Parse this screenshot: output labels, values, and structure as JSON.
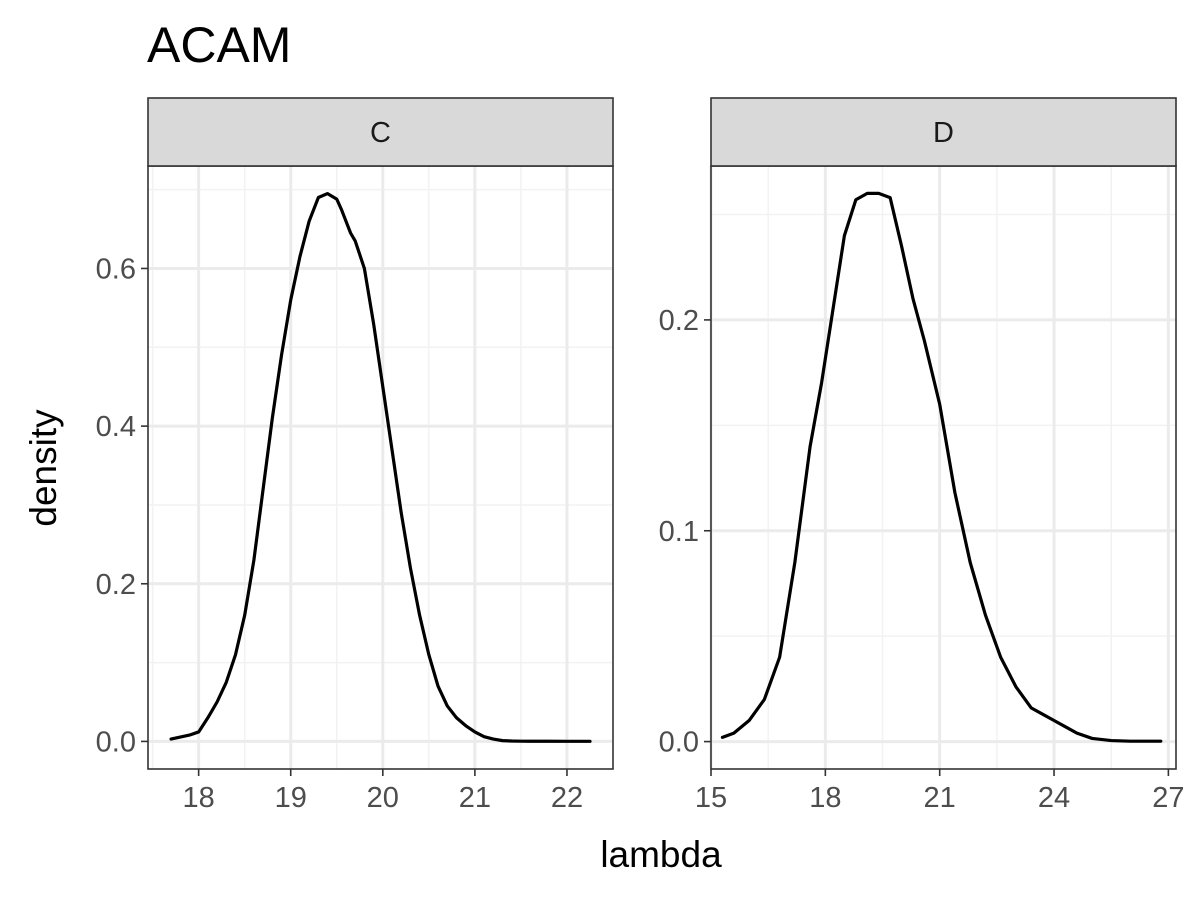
{
  "chart_data": {
    "type": "line",
    "title": "ACAM",
    "xlabel": "lambda",
    "ylabel": "density",
    "grid": true,
    "facets": [
      {
        "strip": "C",
        "xlim": [
          17.45,
          22.5
        ],
        "ylim": [
          -0.035,
          0.73
        ],
        "x_ticks": [
          18,
          19,
          20,
          21,
          22
        ],
        "x_tick_labels": [
          "18",
          "19",
          "20",
          "21",
          "22"
        ],
        "y_ticks": [
          0.0,
          0.2,
          0.4,
          0.6
        ],
        "y_tick_labels": [
          "0.0",
          "0.2",
          "0.4",
          "0.6"
        ],
        "series": [
          {
            "x": [
              17.7,
              17.9,
              18.0,
              18.1,
              18.2,
              18.3,
              18.4,
              18.5,
              18.6,
              18.7,
              18.8,
              18.9,
              19.0,
              19.1,
              19.2,
              19.3,
              19.4,
              19.5,
              19.55,
              19.6,
              19.65,
              19.7,
              19.8,
              19.9,
              20.0,
              20.1,
              20.2,
              20.3,
              20.4,
              20.5,
              20.6,
              20.7,
              20.8,
              20.9,
              21.0,
              21.1,
              21.2,
              21.3,
              21.4,
              21.5,
              21.6,
              21.8,
              22.0,
              22.25
            ],
            "y": [
              0.003,
              0.008,
              0.012,
              0.03,
              0.05,
              0.075,
              0.11,
              0.16,
              0.23,
              0.32,
              0.41,
              0.49,
              0.56,
              0.615,
              0.66,
              0.69,
              0.695,
              0.688,
              0.675,
              0.66,
              0.645,
              0.635,
              0.6,
              0.53,
              0.45,
              0.37,
              0.29,
              0.22,
              0.16,
              0.11,
              0.07,
              0.045,
              0.03,
              0.02,
              0.012,
              0.006,
              0.003,
              0.001,
              0.0005,
              0.0003,
              0.0002,
              0.0002,
              0.0001,
              0.0001
            ]
          }
        ]
      },
      {
        "strip": "D",
        "xlim": [
          15.0,
          27.2
        ],
        "ylim": [
          -0.013,
          0.273
        ],
        "x_ticks": [
          15,
          18,
          21,
          24,
          27
        ],
        "x_tick_labels": [
          "15",
          "18",
          "21",
          "24",
          "27"
        ],
        "y_ticks": [
          0.0,
          0.1,
          0.2
        ],
        "y_tick_labels": [
          "0.0",
          "0.1",
          "0.2"
        ],
        "series": [
          {
            "x": [
              15.3,
              15.6,
              16.0,
              16.4,
              16.8,
              17.2,
              17.6,
              17.9,
              18.2,
              18.5,
              18.8,
              19.1,
              19.4,
              19.7,
              20.0,
              20.3,
              20.6,
              21.0,
              21.4,
              21.8,
              22.2,
              22.6,
              23.0,
              23.4,
              23.7,
              24.0,
              24.3,
              24.6,
              25.0,
              25.5,
              26.0,
              26.5,
              26.8
            ],
            "y": [
              0.002,
              0.004,
              0.01,
              0.02,
              0.04,
              0.085,
              0.14,
              0.17,
              0.205,
              0.24,
              0.257,
              0.26,
              0.26,
              0.258,
              0.235,
              0.21,
              0.19,
              0.16,
              0.118,
              0.085,
              0.06,
              0.04,
              0.026,
              0.016,
              0.013,
              0.01,
              0.007,
              0.004,
              0.0015,
              0.0005,
              0.0002,
              0.0002,
              0.0002
            ]
          }
        ]
      }
    ]
  }
}
